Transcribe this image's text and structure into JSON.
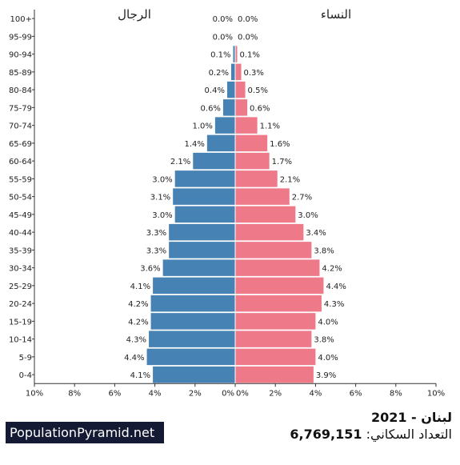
{
  "chart_data": {
    "type": "bar",
    "orientation": "horizontal-pyramid",
    "categories": [
      "100+",
      "95-99",
      "90-94",
      "85-89",
      "80-84",
      "75-79",
      "70-74",
      "65-69",
      "60-64",
      "55-59",
      "50-54",
      "45-49",
      "40-44",
      "35-39",
      "30-34",
      "25-29",
      "20-24",
      "15-19",
      "10-14",
      "5-9",
      "0-4"
    ],
    "series": [
      {
        "name": "الرجال",
        "color": "#4682b4",
        "values": [
          0.0,
          0.0,
          0.1,
          0.2,
          0.4,
          0.6,
          1.0,
          1.4,
          2.1,
          3.0,
          3.1,
          3.0,
          3.3,
          3.3,
          3.6,
          4.1,
          4.2,
          4.2,
          4.3,
          4.4,
          4.1
        ],
        "labels": [
          "0.0%",
          "0.0%",
          "0.1%",
          "0.2%",
          "0.4%",
          "0.6%",
          "1.0%",
          "1.4%",
          "2.1%",
          "3.0%",
          "3.1%",
          "3.0%",
          "3.3%",
          "3.3%",
          "3.6%",
          "4.1%",
          "4.2%",
          "4.2%",
          "4.3%",
          "4.4%",
          "4.1%"
        ]
      },
      {
        "name": "النساء",
        "color": "#ee7989",
        "values": [
          0.0,
          0.0,
          0.1,
          0.3,
          0.5,
          0.6,
          1.1,
          1.6,
          1.7,
          2.1,
          2.7,
          3.0,
          3.4,
          3.8,
          4.2,
          4.4,
          4.3,
          4.0,
          3.8,
          4.0,
          3.9
        ],
        "labels": [
          "0.0%",
          "0.0%",
          "0.1%",
          "0.3%",
          "0.5%",
          "0.6%",
          "1.1%",
          "1.6%",
          "1.7%",
          "2.1%",
          "2.7%",
          "3.0%",
          "3.4%",
          "3.8%",
          "4.2%",
          "4.4%",
          "4.3%",
          "4.0%",
          "3.8%",
          "4.0%",
          "3.9%"
        ]
      }
    ],
    "xlim": [
      -10,
      10
    ],
    "x_ticks_left": [
      "10%",
      "8%",
      "6%",
      "4%",
      "2%",
      "0%"
    ],
    "x_ticks_right": [
      "0%",
      "2%",
      "4%",
      "6%",
      "8%",
      "10%"
    ],
    "grid": false
  },
  "footer": {
    "brand": "PopulationPyramid.net",
    "title": "لبنان - 2021",
    "population_label": "التعداد السكاني:",
    "population_value": "6,769,151"
  }
}
